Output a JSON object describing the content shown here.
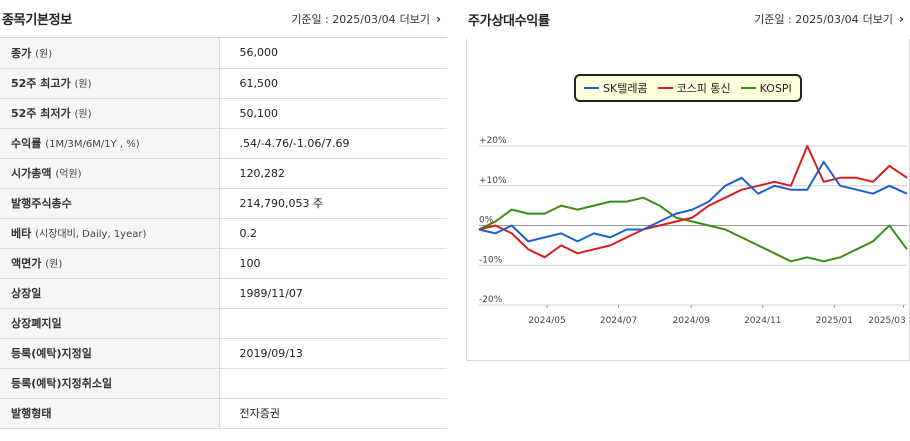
{
  "left": {
    "title": "종목기본정보",
    "date_label": "기준일 : 2025/03/04",
    "more_label": "더보기",
    "rows": [
      {
        "label": "종가",
        "sub": "(원)",
        "value": "56,000"
      },
      {
        "label": "52주 최고가",
        "sub": "(원)",
        "value": "61,500"
      },
      {
        "label": "52주 최저가",
        "sub": "(원)",
        "value": "50,100"
      },
      {
        "label": "수익률",
        "sub": "(1M/3M/6M/1Y , %)",
        "value": ".54/-4.76/-1.06/7.69"
      },
      {
        "label": "시가총액",
        "sub": "(억원)",
        "value": "120,282"
      },
      {
        "label": "발행주식총수",
        "sub": "",
        "value": "214,790,053 주"
      },
      {
        "label": "베타",
        "sub": "(시장대비, Daily, 1year)",
        "value": "0.2"
      },
      {
        "label": "액면가",
        "sub": "(원)",
        "value": "100"
      },
      {
        "label": "상장일",
        "sub": "",
        "value": "1989/11/07"
      },
      {
        "label": "상장폐지일",
        "sub": "",
        "value": ""
      },
      {
        "label": "등록(예탁)지정일",
        "sub": "",
        "value": "2019/09/13"
      },
      {
        "label": "등록(예탁)지정취소일",
        "sub": "",
        "value": ""
      },
      {
        "label": "발행형태",
        "sub": "",
        "value": "전자증권"
      }
    ]
  },
  "right": {
    "title": "주가상대수익률",
    "date_label": "기준일 : 2025/03/04",
    "more_label": "더보기"
  },
  "chart_data": {
    "type": "line",
    "x": [
      "2024-03-04",
      "2024-03-18",
      "2024-04-01",
      "2024-04-15",
      "2024-04-29",
      "2024-05-13",
      "2024-05-27",
      "2024-06-10",
      "2024-06-24",
      "2024-07-08",
      "2024-07-22",
      "2024-08-05",
      "2024-08-19",
      "2024-09-02",
      "2024-09-16",
      "2024-09-30",
      "2024-10-14",
      "2024-10-28",
      "2024-11-11",
      "2024-11-25",
      "2024-12-09",
      "2024-12-23",
      "2025-01-06",
      "2025-01-20",
      "2025-02-03",
      "2025-02-17",
      "2025-03-04"
    ],
    "x_ticks": [
      "2024/05",
      "2024/07",
      "2024/09",
      "2024/11",
      "2025/01",
      "2025/03"
    ],
    "y_ticks": [
      "+20%",
      "+10%",
      "0%",
      "-10%",
      "-20%"
    ],
    "ylim": [
      -20,
      20
    ],
    "series": [
      {
        "name": "SK텔레콤",
        "color": "#1f5fd0",
        "values": [
          -1,
          -2,
          0,
          -4,
          -3,
          -2,
          -4,
          -2,
          -3,
          -1,
          -1,
          1,
          3,
          4,
          6,
          10,
          12,
          8,
          10,
          9,
          9,
          16,
          10,
          9,
          8,
          10,
          8
        ]
      },
      {
        "name": "코스피 통신",
        "color": "#d81e1e",
        "values": [
          -1,
          0,
          -2,
          -6,
          -8,
          -5,
          -7,
          -6,
          -5,
          -3,
          -1,
          0,
          1,
          2,
          5,
          7,
          9,
          10,
          11,
          10,
          20,
          11,
          12,
          12,
          11,
          15,
          12
        ]
      },
      {
        "name": "KOSPI",
        "color": "#3a8d16",
        "values": [
          -1,
          1,
          4,
          3,
          3,
          5,
          4,
          5,
          6,
          6,
          7,
          5,
          2,
          1,
          0,
          -1,
          -3,
          -5,
          -7,
          -9,
          -8,
          -9,
          -8,
          -6,
          -4,
          0,
          -6
        ]
      }
    ],
    "grid": true,
    "legend_position": "top-center"
  }
}
